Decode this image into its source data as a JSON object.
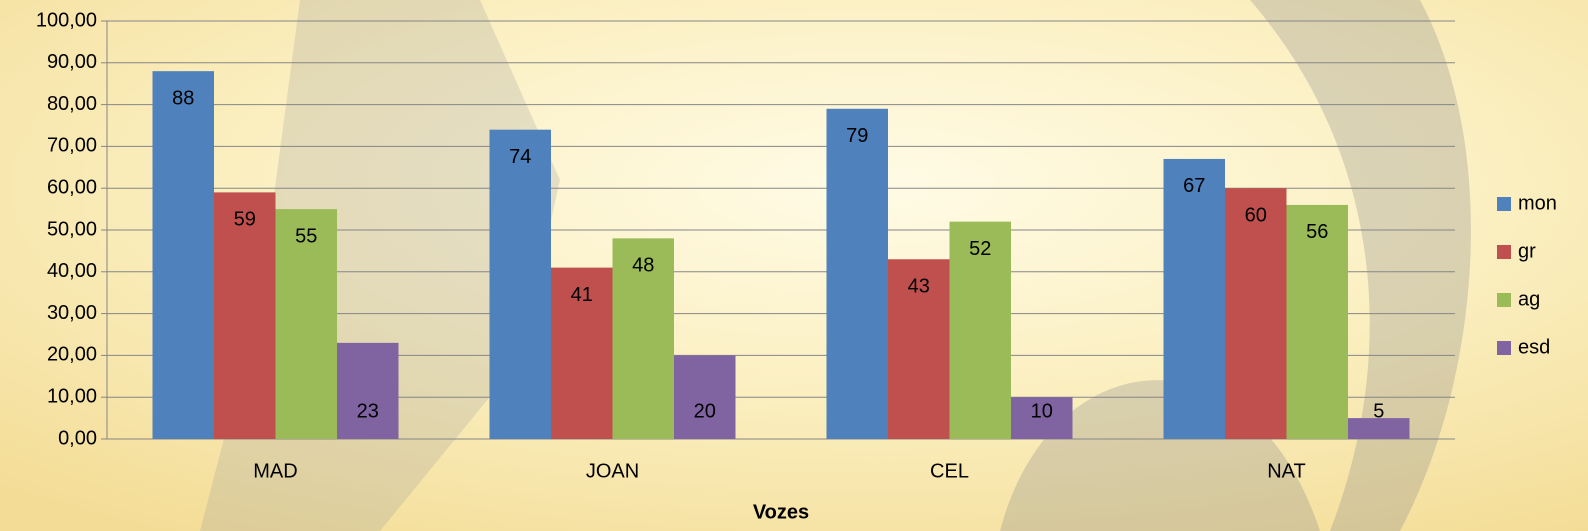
{
  "chart_data": {
    "type": "bar",
    "x_label": "Vozes",
    "categories": [
      "MAD",
      "JOAN",
      "CEL",
      "NAT"
    ],
    "series": [
      {
        "name": "mon",
        "color": "#4f81bd",
        "values": [
          88,
          74,
          79,
          67
        ]
      },
      {
        "name": "gr",
        "color": "#c0504d",
        "values": [
          59,
          41,
          43,
          60
        ]
      },
      {
        "name": "ag",
        "color": "#9bbb59",
        "values": [
          55,
          48,
          52,
          56
        ]
      },
      {
        "name": "esd",
        "color": "#8064a2",
        "values": [
          23,
          20,
          10,
          5
        ]
      }
    ],
    "ylim": [
      0,
      100
    ],
    "yticks": [
      {
        "value": 0,
        "label": "0,00"
      },
      {
        "value": 10,
        "label": "10,00"
      },
      {
        "value": 20,
        "label": "20,00"
      },
      {
        "value": 30,
        "label": "30,00"
      },
      {
        "value": 40,
        "label": "40,00"
      },
      {
        "value": 50,
        "label": "50,00"
      },
      {
        "value": 60,
        "label": "60,00"
      },
      {
        "value": 70,
        "label": "70,00"
      },
      {
        "value": 80,
        "label": "80,00"
      },
      {
        "value": 90,
        "label": "90,00"
      },
      {
        "value": 100,
        "label": "100,00"
      }
    ],
    "grid": true,
    "legend": "right"
  }
}
